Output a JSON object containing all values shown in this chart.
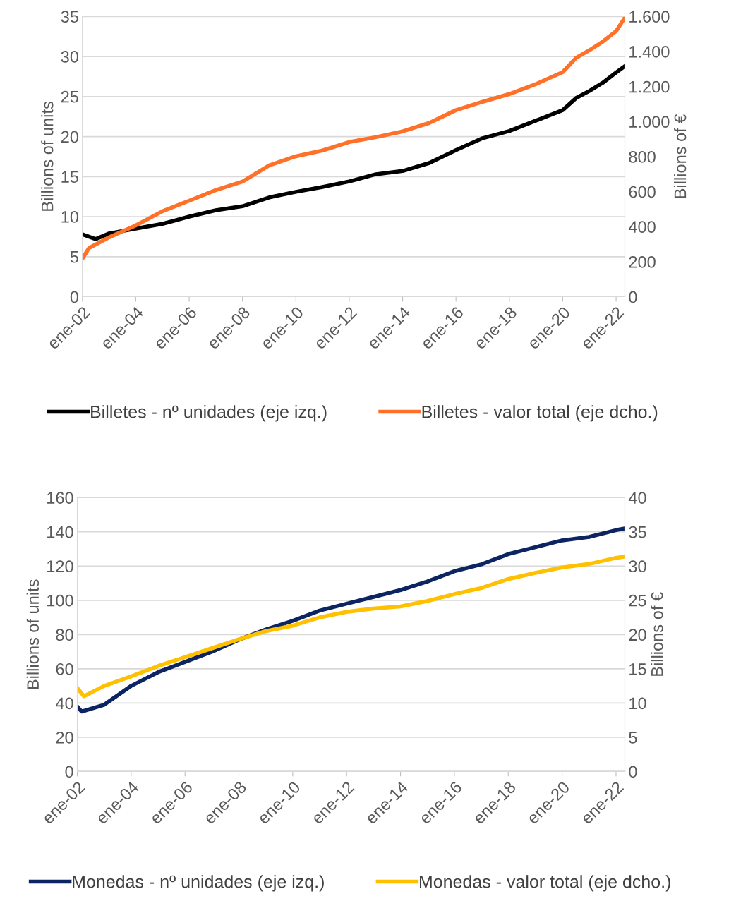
{
  "chart_data": [
    {
      "type": "line",
      "ylabel": "Billions of units",
      "y2label": "Billions of €",
      "grid": "y",
      "legend": "bottom",
      "marker": "none",
      "line_style": "solid",
      "xlim": [
        "2002-01",
        "2022-05"
      ],
      "xticks": [
        {
          "value": "2002-01",
          "label": "ene-02"
        },
        {
          "value": "2004-01",
          "label": "ene-04"
        },
        {
          "value": "2006-01",
          "label": "ene-06"
        },
        {
          "value": "2008-01",
          "label": "ene-08"
        },
        {
          "value": "2010-01",
          "label": "ene-10"
        },
        {
          "value": "2012-01",
          "label": "ene-12"
        },
        {
          "value": "2014-01",
          "label": "ene-14"
        },
        {
          "value": "2016-01",
          "label": "ene-16"
        },
        {
          "value": "2018-01",
          "label": "ene-18"
        },
        {
          "value": "2020-01",
          "label": "ene-20"
        },
        {
          "value": "2022-01",
          "label": "ene-22"
        }
      ],
      "ylim": [
        0,
        35
      ],
      "yticks": [
        0,
        5,
        10,
        15,
        20,
        25,
        30,
        35
      ],
      "y2lim": [
        0,
        1600
      ],
      "y2ticks": [
        0,
        200,
        400,
        600,
        800,
        {
          "value": 1000,
          "label": "1.000"
        },
        {
          "value": 1200,
          "label": "1.200"
        },
        {
          "value": 1400,
          "label": "1.400"
        },
        {
          "value": 1600,
          "label": "1.600"
        }
      ],
      "series": [
        {
          "name": "Billetes - nº unidades (eje izq.)",
          "color": "#000000",
          "x": [
            "2002-01",
            "2002-07",
            "2003-01",
            "2004-01",
            "2005-01",
            "2006-01",
            "2007-01",
            "2008-01",
            "2009-01",
            "2010-01",
            "2011-01",
            "2012-01",
            "2013-01",
            "2014-01",
            "2015-01",
            "2016-01",
            "2017-01",
            "2018-01",
            "2019-01",
            "2020-01",
            "2020-07",
            "2021-01",
            "2021-07",
            "2022-01",
            "2022-05"
          ],
          "values": [
            7.8,
            7.2,
            7.9,
            8.5,
            9.1,
            10.0,
            10.8,
            11.3,
            12.4,
            13.1,
            13.7,
            14.4,
            15.3,
            15.7,
            16.7,
            18.3,
            19.8,
            20.7,
            22.0,
            23.3,
            24.8,
            25.7,
            26.7,
            28.0,
            28.8
          ]
        },
        {
          "name": "Billetes - valor total (eje dcho.)",
          "color": "#ff7128",
          "axis": "y2",
          "x": [
            "2002-01",
            "2002-04",
            "2003-01",
            "2004-01",
            "2005-01",
            "2006-01",
            "2007-01",
            "2008-01",
            "2009-01",
            "2010-01",
            "2011-01",
            "2012-01",
            "2013-01",
            "2014-01",
            "2015-01",
            "2016-01",
            "2017-01",
            "2018-01",
            "2019-01",
            "2020-01",
            "2020-07",
            "2021-01",
            "2021-07",
            "2022-01",
            "2022-05"
          ],
          "values": [
            218,
            278,
            339,
            407,
            488,
            548,
            609,
            657,
            750,
            802,
            835,
            883,
            911,
            944,
            992,
            1065,
            1113,
            1157,
            1214,
            1282,
            1363,
            1407,
            1456,
            1516,
            1593
          ]
        }
      ]
    },
    {
      "type": "line",
      "ylabel": "Billions of units",
      "y2label": "Billions of €",
      "grid": "y",
      "legend": "bottom",
      "marker": "none",
      "line_style": "solid",
      "xlim": [
        "2002-01",
        "2022-05"
      ],
      "xticks": [
        {
          "value": "2002-01",
          "label": "ene-02"
        },
        {
          "value": "2004-01",
          "label": "ene-04"
        },
        {
          "value": "2006-01",
          "label": "ene-06"
        },
        {
          "value": "2008-01",
          "label": "ene-08"
        },
        {
          "value": "2010-01",
          "label": "ene-10"
        },
        {
          "value": "2012-01",
          "label": "ene-12"
        },
        {
          "value": "2014-01",
          "label": "ene-14"
        },
        {
          "value": "2016-01",
          "label": "ene-16"
        },
        {
          "value": "2018-01",
          "label": "ene-18"
        },
        {
          "value": "2020-01",
          "label": "ene-20"
        },
        {
          "value": "2022-01",
          "label": "ene-22"
        }
      ],
      "ylim": [
        0,
        160
      ],
      "yticks": [
        0,
        20,
        40,
        60,
        80,
        100,
        120,
        140,
        160
      ],
      "y2lim": [
        0,
        40
      ],
      "y2ticks": [
        0,
        5,
        10,
        15,
        20,
        25,
        30,
        35,
        40
      ],
      "series": [
        {
          "name": "Monedas - nº unidades (eje izq.)",
          "color": "#0c2461",
          "x": [
            "2002-01",
            "2002-03",
            "2003-01",
            "2004-01",
            "2005-01",
            "2006-01",
            "2007-01",
            "2008-01",
            "2009-01",
            "2010-01",
            "2011-01",
            "2012-01",
            "2013-01",
            "2014-01",
            "2015-01",
            "2016-01",
            "2017-01",
            "2018-01",
            "2019-01",
            "2020-01",
            "2021-01",
            "2022-01",
            "2022-05"
          ],
          "values": [
            38,
            35,
            39,
            50,
            58,
            64,
            70,
            77,
            83,
            88,
            94,
            98,
            102,
            106,
            111,
            117,
            121,
            127,
            131,
            135,
            137,
            141,
            142
          ]
        },
        {
          "name": "Monedas - valor total (eje dcho.)",
          "color": "#ffc000",
          "axis": "y2",
          "x": [
            "2002-01",
            "2002-04",
            "2003-01",
            "2004-01",
            "2005-01",
            "2006-01",
            "2007-01",
            "2008-01",
            "2009-01",
            "2010-01",
            "2011-01",
            "2012-01",
            "2013-01",
            "2014-01",
            "2015-01",
            "2016-01",
            "2017-01",
            "2018-01",
            "2019-01",
            "2020-01",
            "2021-01",
            "2022-01",
            "2022-05"
          ],
          "values": [
            12.2,
            11,
            12.5,
            13.9,
            15.4,
            16.7,
            18,
            19.3,
            20.5,
            21.3,
            22.5,
            23.3,
            23.8,
            24.1,
            24.9,
            25.9,
            26.8,
            28.1,
            29,
            29.8,
            30.3,
            31.2,
            31.4
          ]
        }
      ]
    }
  ]
}
